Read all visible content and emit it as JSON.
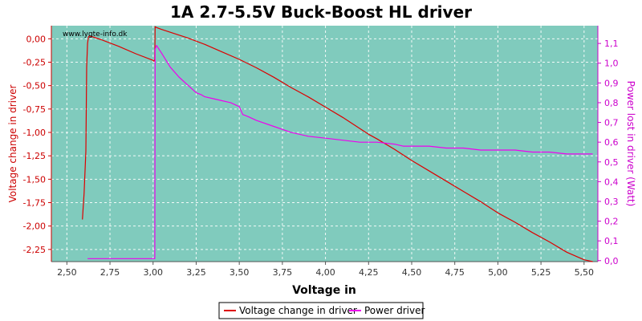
{
  "chart_data": {
    "type": "line",
    "title": "1A 2.7-5.5V Buck-Boost HL driver",
    "watermark": "www.lygte-info.dk",
    "xlabel": "Voltage in",
    "ylabel_left": "Voltage change in driver",
    "ylabel_right": "Power lost in driver (Watt)",
    "xlim": [
      2.41,
      5.58
    ],
    "ylim_left": [
      -2.38,
      0.14
    ],
    "ylim_right": [
      -0.005,
      1.19
    ],
    "x_ticks": [
      "2,50",
      "2,75",
      "3,00",
      "3,25",
      "3,50",
      "3,75",
      "4,00",
      "4,25",
      "4,50",
      "4,75",
      "5,00",
      "5,25",
      "5,50"
    ],
    "x_tick_values": [
      2.5,
      2.75,
      3.0,
      3.25,
      3.5,
      3.75,
      4.0,
      4.25,
      4.5,
      4.75,
      5.0,
      5.25,
      5.5
    ],
    "y_left_ticks": [
      "0,00",
      "-0,25",
      "-0,50",
      "-0,75",
      "-1,00",
      "-1,25",
      "-1,50",
      "-1,75",
      "-2,00",
      "-2,25"
    ],
    "y_left_tick_values": [
      0,
      -0.25,
      -0.5,
      -0.75,
      -1.0,
      -1.25,
      -1.5,
      -1.75,
      -2.0,
      -2.25
    ],
    "y_right_ticks": [
      "0,0",
      "0,1",
      "0,2",
      "0,3",
      "0,4",
      "0,5",
      "0,6",
      "0,7",
      "0,8",
      "0,9",
      "1,0",
      "1,1"
    ],
    "y_right_tick_values": [
      0,
      0.1,
      0.2,
      0.3,
      0.4,
      0.5,
      0.6,
      0.7,
      0.8,
      0.9,
      1.0,
      1.1
    ],
    "grid": true,
    "legend_position": "bottom",
    "colors": {
      "plot_bg": "#80cbbd",
      "grid": "#ffffff",
      "left_axis": "#cc0000",
      "right_axis": "#cc00cc"
    },
    "series": [
      {
        "name": "Voltage change in driver",
        "axis": "left",
        "color": "#dd0000",
        "x": [
          2.59,
          2.6,
          2.61,
          2.615,
          2.62,
          2.625,
          2.63,
          2.65,
          2.7,
          2.8,
          2.9,
          3.0,
          3.005,
          3.01,
          3.012,
          3.02,
          3.05,
          3.1,
          3.2,
          3.3,
          3.4,
          3.5,
          3.6,
          3.7,
          3.8,
          3.9,
          4.0,
          4.1,
          4.2,
          4.25,
          4.3,
          4.4,
          4.5,
          4.6,
          4.7,
          4.8,
          4.9,
          5.0,
          5.1,
          5.2,
          5.3,
          5.4,
          5.5,
          5.55
        ],
        "y": [
          -1.93,
          -1.65,
          -1.2,
          -0.3,
          -0.05,
          0.02,
          0.03,
          0.02,
          -0.01,
          -0.08,
          -0.16,
          -0.23,
          -0.24,
          -0.22,
          0.13,
          0.12,
          0.1,
          0.07,
          0.01,
          -0.06,
          -0.14,
          -0.22,
          -0.31,
          -0.41,
          -0.52,
          -0.62,
          -0.73,
          -0.84,
          -0.96,
          -1.02,
          -1.07,
          -1.18,
          -1.3,
          -1.41,
          -1.52,
          -1.63,
          -1.74,
          -1.86,
          -1.96,
          -2.07,
          -2.17,
          -2.28,
          -2.36,
          -2.4
        ]
      },
      {
        "name": "Power driver",
        "axis": "right",
        "color": "#ee00ee",
        "x": [
          2.62,
          2.7,
          2.8,
          2.9,
          3.0,
          3.01,
          3.012,
          3.02,
          3.05,
          3.1,
          3.15,
          3.2,
          3.25,
          3.28,
          3.3,
          3.35,
          3.4,
          3.45,
          3.5,
          3.52,
          3.55,
          3.6,
          3.7,
          3.8,
          3.9,
          4.0,
          4.1,
          4.2,
          4.3,
          4.4,
          4.45,
          4.5,
          4.6,
          4.7,
          4.8,
          4.9,
          5.0,
          5.1,
          5.2,
          5.3,
          5.4,
          5.5,
          5.55
        ],
        "y": [
          0.01,
          0.01,
          0.01,
          0.01,
          0.01,
          0.01,
          1.07,
          1.09,
          1.05,
          0.98,
          0.93,
          0.89,
          0.85,
          0.84,
          0.83,
          0.82,
          0.81,
          0.8,
          0.78,
          0.74,
          0.73,
          0.71,
          0.68,
          0.65,
          0.63,
          0.62,
          0.61,
          0.6,
          0.6,
          0.59,
          0.58,
          0.58,
          0.58,
          0.57,
          0.57,
          0.56,
          0.56,
          0.56,
          0.55,
          0.55,
          0.54,
          0.54,
          0.54
        ]
      }
    ]
  }
}
